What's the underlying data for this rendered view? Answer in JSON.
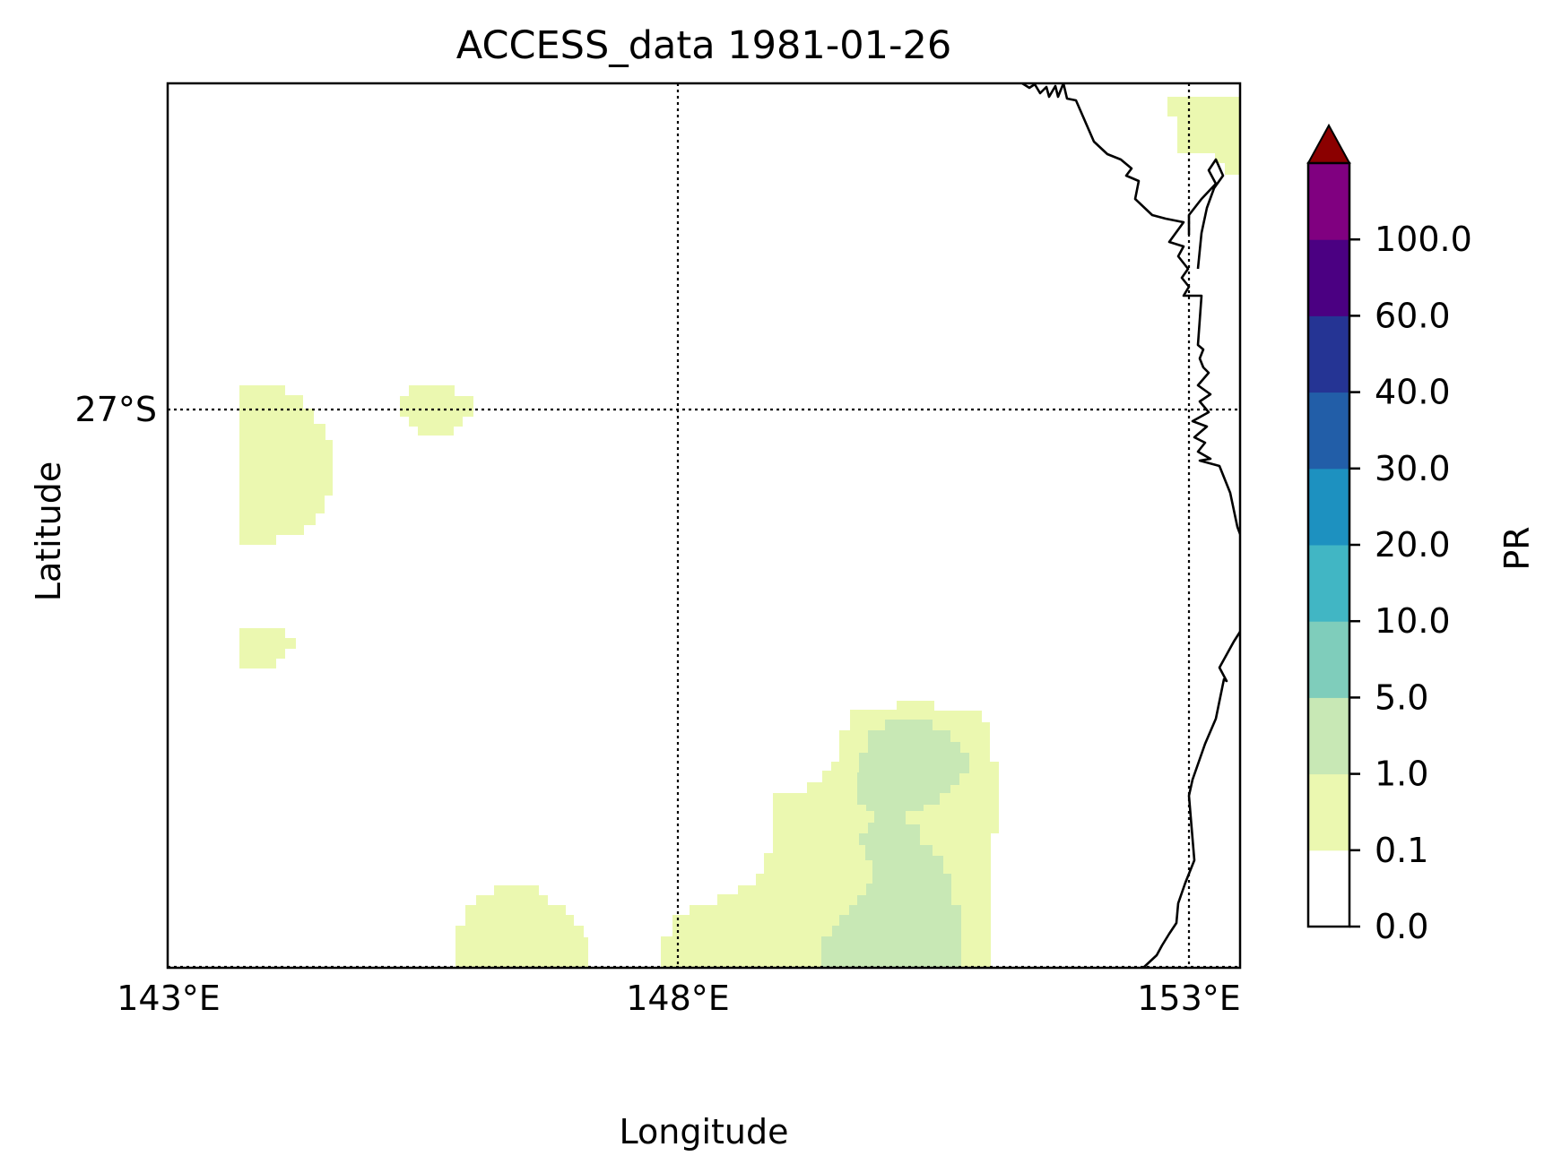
{
  "title": "ACCESS_data 1981-01-26",
  "xlabel": "Longitude",
  "ylabel": "Latitude",
  "colorbar_label": "PR",
  "chart_data": {
    "type": "heatmap",
    "title": "ACCESS_data 1981-01-26",
    "xlabel": "Longitude",
    "ylabel": "Latitude",
    "xlim": [
      143,
      153.5
    ],
    "ylim": [
      -34.4,
      -23.2
    ],
    "x_ticks": [
      143,
      148,
      153
    ],
    "x_tick_labels": [
      "143°E",
      "148°E",
      "153°E"
    ],
    "y_ticks": [
      -27
    ],
    "y_tick_labels": [
      "27°S"
    ],
    "gridlines": "dotted at 148°E, 153°E and 27°S",
    "colorbar": {
      "label": "PR",
      "levels": [
        0.0,
        0.1,
        1.0,
        5.0,
        10.0,
        20.0,
        30.0,
        40.0,
        60.0,
        100.0
      ],
      "level_labels": [
        "0.0",
        "0.1",
        "1.0",
        "5.0",
        "10.0",
        "20.0",
        "30.0",
        "40.0",
        "60.0",
        "100.0"
      ],
      "colors": [
        "#ffffff",
        "#ebf8b0",
        "#c8e8b5",
        "#7fcdbb",
        "#41b6c4",
        "#1d91c0",
        "#225ea8",
        "#253494",
        "#4b0082",
        "#800080"
      ],
      "extend_color": "#8b0000"
    },
    "regions": [
      {
        "range": "0.1-1.0",
        "color": "#ebf8b0",
        "lon": [
          143.7,
          144.6
        ],
        "lat": [
          -28.7,
          -26.7
        ]
      },
      {
        "range": "0.1-1.0",
        "color": "#ebf8b0",
        "lon": [
          145.3,
          146.1
        ],
        "lat": [
          -27.3,
          -26.7
        ]
      },
      {
        "range": "0.1-1.0",
        "color": "#ebf8b0",
        "lon": [
          143.7,
          144.3
        ],
        "lat": [
          -30.2,
          -29.7
        ]
      },
      {
        "range": "0.1-1.0",
        "color": "#ebf8b0",
        "lon": [
          145.8,
          147.1
        ],
        "lat": [
          -34.4,
          -33.2
        ]
      },
      {
        "range": "0.1-1.0",
        "color": "#ebf8b0",
        "lon": [
          147.8,
          151.3
        ],
        "lat": [
          -34.4,
          -30.8
        ]
      },
      {
        "range": "1.0-5.0",
        "color": "#c8e8b5",
        "lon": [
          149.5,
          151.0
        ],
        "lat": [
          -34.4,
          -31.0
        ]
      },
      {
        "range": "0.1-1.0",
        "color": "#ebf8b0",
        "lon": [
          152.9,
          153.5
        ],
        "lat": [
          -24.2,
          -23.2
        ]
      }
    ]
  }
}
